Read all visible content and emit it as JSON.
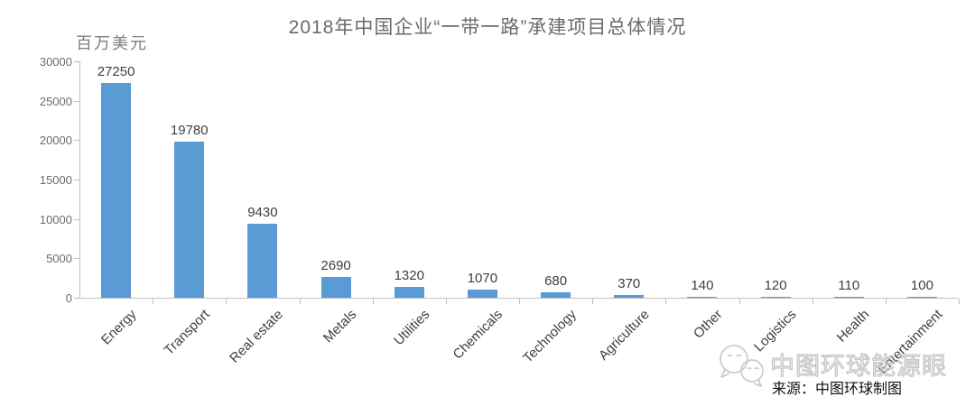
{
  "title": "2018年中国企业“一带一路”承建项目总体情况",
  "unit_label": "百万美元",
  "chart_data": {
    "type": "bar",
    "categories": [
      "Energy",
      "Transport",
      "Real estate",
      "Metals",
      "Utilities",
      "Chemicals",
      "Technology",
      "Agriculture",
      "Other",
      "Logistics",
      "Health",
      "Entertainment"
    ],
    "values": [
      27250,
      19780,
      9430,
      2690,
      1320,
      1070,
      680,
      370,
      140,
      120,
      110,
      100
    ],
    "title": "2018年中国企业“一带一路”承建项目总体情况",
    "xlabel": "",
    "ylabel": "百万美元",
    "ylim": [
      0,
      30000
    ],
    "yticks": [
      0,
      5000,
      10000,
      15000,
      20000,
      25000,
      30000
    ],
    "bar_color": "#5b9bd5",
    "data_labels_shown": true,
    "grid": false,
    "legend": "none"
  },
  "watermark": {
    "logo_icon": "wechat-bubbles-icon",
    "text": "中图环球能源眼"
  },
  "source": {
    "label": "来源：中图环球制图"
  },
  "colors": {
    "bar": "#5b9bd5",
    "axis": "#bfbfbf",
    "title_text": "#6b6b6b",
    "tick_text": "#6b6b6b",
    "label_text": "#3f3f3f",
    "watermark_stroke": "#c6c6c6",
    "source_text": "#111111"
  }
}
